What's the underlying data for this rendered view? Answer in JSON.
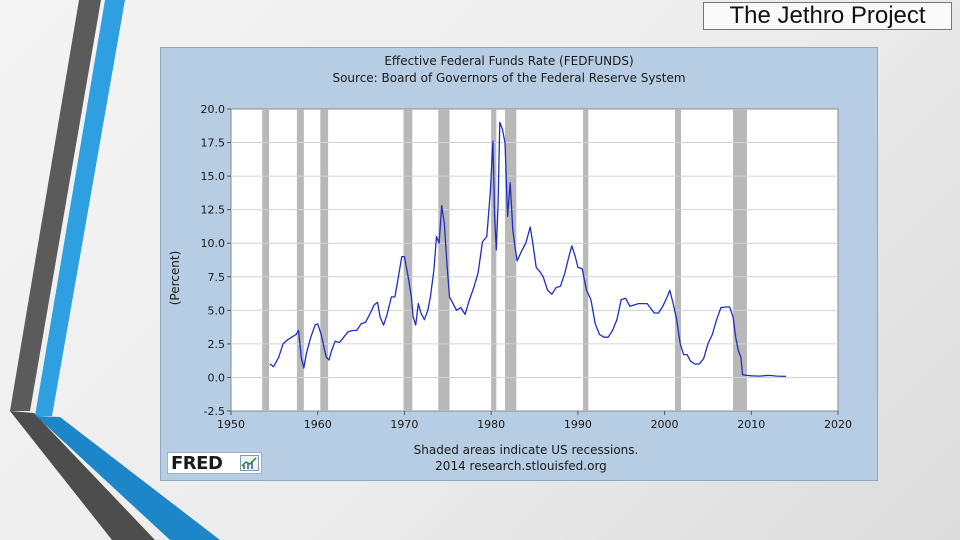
{
  "header": {
    "brand": "The Jethro Project"
  },
  "chart_logo": {
    "text": "FRED"
  },
  "colors": {
    "frame_bg": "#b6cde4",
    "plot_bg": "#ffffff",
    "line": "#1f2fbd",
    "recession": "#b8b8b8",
    "grid": "#cfd4da",
    "text": "#1a1a1a"
  },
  "chart_data": {
    "type": "line",
    "title": "Effective Federal Funds Rate (FEDFUNDS)",
    "subtitle": "Source: Board of Governors of the Federal Reserve System",
    "ylabel": "(Percent)",
    "xlabel": "",
    "xlim": [
      1950,
      2020
    ],
    "ylim": [
      -2.5,
      20.0
    ],
    "x_ticks": [
      1950,
      1960,
      1970,
      1980,
      1990,
      2000,
      2010,
      2020
    ],
    "y_ticks": [
      -2.5,
      0.0,
      2.5,
      5.0,
      7.5,
      10.0,
      12.5,
      15.0,
      17.5,
      20.0
    ],
    "y_tick_labels": [
      "-2.5",
      "0.0",
      "2.5",
      "5.0",
      "7.5",
      "10.0",
      "12.5",
      "15.0",
      "17.5",
      "20.0"
    ],
    "grid": true,
    "footnote": "Shaded areas indicate US recessions.",
    "source_line": "2014 research.stlouisfed.org",
    "recessions": [
      [
        1953.6,
        1954.4
      ],
      [
        1957.6,
        1958.4
      ],
      [
        1960.3,
        1961.2
      ],
      [
        1969.9,
        1970.9
      ],
      [
        1973.9,
        1975.2
      ],
      [
        1980.0,
        1980.6
      ],
      [
        1981.6,
        1982.9
      ],
      [
        1990.6,
        1991.2
      ],
      [
        2001.2,
        2001.9
      ],
      [
        2007.9,
        2009.5
      ]
    ],
    "series": [
      {
        "name": "FEDFUNDS",
        "x": [
          1954.5,
          1954.9,
          1955.5,
          1956.0,
          1956.5,
          1957.0,
          1957.5,
          1957.8,
          1958.1,
          1958.4,
          1958.7,
          1959.2,
          1959.7,
          1960.0,
          1960.4,
          1960.8,
          1961.0,
          1961.3,
          1961.6,
          1962.0,
          1962.5,
          1963.0,
          1963.5,
          1964.0,
          1964.5,
          1965.0,
          1965.5,
          1966.0,
          1966.5,
          1966.9,
          1967.2,
          1967.6,
          1968.0,
          1968.5,
          1968.9,
          1969.3,
          1969.7,
          1970.0,
          1970.4,
          1970.8,
          1971.0,
          1971.3,
          1971.6,
          1971.9,
          1972.3,
          1972.7,
          1973.0,
          1973.4,
          1973.7,
          1974.0,
          1974.3,
          1974.6,
          1974.9,
          1975.2,
          1975.6,
          1976.0,
          1976.5,
          1977.0,
          1977.5,
          1978.0,
          1978.5,
          1979.0,
          1979.5,
          1979.9,
          1980.2,
          1980.4,
          1980.6,
          1980.8,
          1981.0,
          1981.3,
          1981.6,
          1981.9,
          1982.2,
          1982.5,
          1982.8,
          1983.0,
          1983.5,
          1984.0,
          1984.5,
          1984.8,
          1985.2,
          1985.6,
          1986.0,
          1986.5,
          1987.0,
          1987.5,
          1988.0,
          1988.5,
          1989.0,
          1989.3,
          1989.7,
          1990.0,
          1990.5,
          1991.0,
          1991.5,
          1992.0,
          1992.5,
          1993.0,
          1993.5,
          1994.0,
          1994.5,
          1995.0,
          1995.5,
          1996.0,
          1997.0,
          1998.0,
          1998.8,
          1999.3,
          1999.8,
          2000.3,
          2000.6,
          2001.0,
          2001.4,
          2001.8,
          2002.2,
          2002.6,
          2003.0,
          2003.5,
          2004.0,
          2004.5,
          2005.0,
          2005.5,
          2006.0,
          2006.5,
          2007.0,
          2007.5,
          2007.9,
          2008.2,
          2008.5,
          2008.8,
          2009.0,
          2009.5,
          2010.0,
          2011.0,
          2012.0,
          2013.0,
          2014.0
        ],
        "values": [
          1.0,
          0.8,
          1.5,
          2.5,
          2.8,
          3.0,
          3.2,
          3.5,
          1.5,
          0.7,
          1.8,
          3.0,
          3.9,
          4.0,
          3.2,
          2.0,
          1.5,
          1.3,
          2.0,
          2.7,
          2.6,
          3.0,
          3.4,
          3.5,
          3.5,
          4.0,
          4.1,
          4.7,
          5.4,
          5.6,
          4.5,
          3.9,
          4.7,
          6.0,
          6.0,
          7.5,
          9.0,
          9.0,
          7.6,
          6.0,
          4.5,
          3.9,
          5.5,
          4.8,
          4.3,
          5.0,
          6.0,
          8.0,
          10.5,
          10.0,
          12.8,
          11.5,
          8.5,
          6.0,
          5.5,
          5.0,
          5.2,
          4.7,
          5.8,
          6.7,
          7.8,
          10.1,
          10.5,
          13.8,
          17.6,
          12.0,
          9.5,
          13.0,
          19.0,
          18.5,
          17.5,
          12.0,
          14.5,
          11.0,
          9.5,
          8.7,
          9.4,
          10.0,
          11.2,
          10.0,
          8.2,
          7.9,
          7.5,
          6.5,
          6.2,
          6.7,
          6.8,
          7.8,
          9.1,
          9.8,
          9.0,
          8.2,
          8.1,
          6.5,
          5.8,
          4.0,
          3.2,
          3.0,
          3.0,
          3.5,
          4.3,
          5.8,
          5.9,
          5.3,
          5.5,
          5.5,
          4.8,
          4.8,
          5.3,
          6.0,
          6.5,
          5.5,
          4.3,
          2.5,
          1.7,
          1.7,
          1.2,
          1.0,
          1.0,
          1.4,
          2.5,
          3.2,
          4.3,
          5.2,
          5.25,
          5.25,
          4.5,
          3.0,
          2.0,
          1.5,
          0.2,
          0.15,
          0.12,
          0.1,
          0.15,
          0.1,
          0.08
        ]
      }
    ]
  }
}
